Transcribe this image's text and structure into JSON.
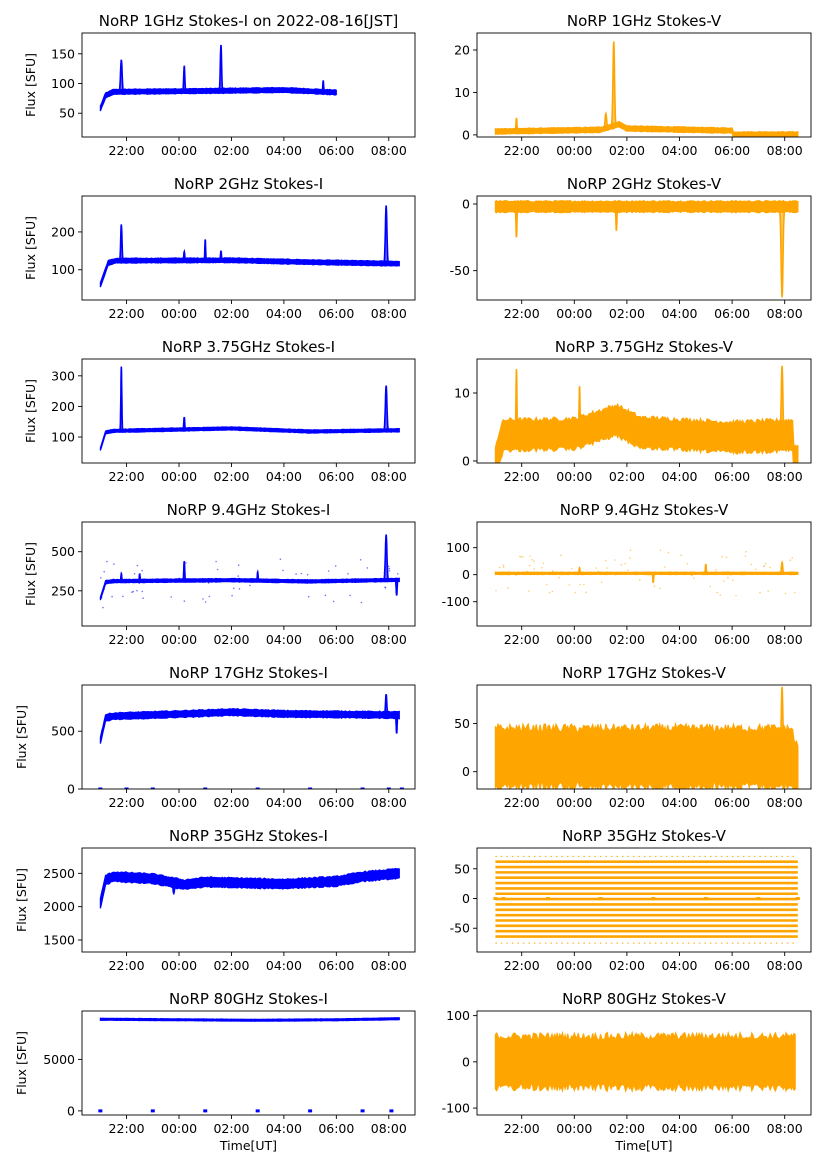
{
  "figure": {
    "x_tick_labels": [
      "22:00",
      "00:00",
      "02:00",
      "04:00",
      "06:00",
      "08:00"
    ],
    "xlabel": "Time[UT]",
    "ylabel": "Flux [SFU]",
    "colors": {
      "stokes_i": "#0000ff",
      "stokes_v": "#ffa500"
    }
  },
  "chart_data": [
    {
      "type": "scatter",
      "title": "NoRP 1GHz Stokes-I on 2022-08-16[JST]",
      "ylabel": "Flux [SFU]",
      "x_hours_utc_range": [
        20.3,
        33.0
      ],
      "data_end_hour": 30.0,
      "ylim": [
        10,
        185
      ],
      "yticks": [
        50,
        100,
        150
      ],
      "baseline": [
        [
          21.0,
          58
        ],
        [
          21.2,
          80
        ],
        [
          21.5,
          86
        ],
        [
          24,
          87
        ],
        [
          26,
          88
        ],
        [
          28,
          89
        ],
        [
          30,
          85
        ]
      ],
      "band": 4,
      "spikes": [
        [
          21.8,
          140,
          0.1
        ],
        [
          24.2,
          130,
          0.07
        ],
        [
          25.6,
          165,
          0.08
        ],
        [
          29.5,
          105,
          0.05
        ]
      ],
      "outliers": []
    },
    {
      "type": "scatter",
      "title": "NoRP 1GHz Stokes-V",
      "ylabel": "",
      "x_hours_utc_range": [
        20.3,
        33.0
      ],
      "data_end_hour": 32.5,
      "ylim": [
        -0.5,
        24
      ],
      "yticks": [
        0,
        10,
        20
      ],
      "baseline": [
        [
          21.0,
          0.8
        ],
        [
          25.0,
          1.2
        ],
        [
          25.7,
          2.5
        ],
        [
          26.0,
          1.5
        ],
        [
          30.0,
          1.0
        ],
        [
          30.05,
          0.1
        ],
        [
          32.5,
          0.1
        ]
      ],
      "band": 0.6,
      "spikes": [
        [
          21.8,
          4,
          0.06
        ],
        [
          25.5,
          22,
          0.1
        ],
        [
          25.2,
          5,
          0.1
        ]
      ],
      "outliers": []
    },
    {
      "type": "scatter",
      "title": "NoRP 2GHz Stokes-I",
      "ylabel": "Flux [SFU]",
      "x_hours_utc_range": [
        20.3,
        33.0
      ],
      "data_end_hour": 32.4,
      "ylim": [
        20,
        295
      ],
      "yticks": [
        100,
        200
      ],
      "baseline": [
        [
          21.0,
          60
        ],
        [
          21.3,
          118
        ],
        [
          21.6,
          124
        ],
        [
          26,
          125
        ],
        [
          29,
          120
        ],
        [
          32.4,
          116
        ]
      ],
      "band": 6,
      "spikes": [
        [
          21.8,
          220,
          0.08
        ],
        [
          24.2,
          148,
          0.06
        ],
        [
          25.6,
          150,
          0.06
        ],
        [
          31.9,
          270,
          0.1
        ],
        [
          25.0,
          180,
          0.05
        ]
      ],
      "outliers": []
    },
    {
      "type": "scatter",
      "title": "NoRP 2GHz Stokes-V",
      "ylabel": "",
      "x_hours_utc_range": [
        20.3,
        33.0
      ],
      "data_end_hour": 32.5,
      "ylim": [
        -72,
        6
      ],
      "yticks": [
        -50,
        0
      ],
      "baseline": [
        [
          21.0,
          -2
        ],
        [
          32.5,
          -2
        ]
      ],
      "band": 4,
      "spikes": [
        [
          21.8,
          -25,
          0.06
        ],
        [
          25.6,
          -20,
          0.06
        ],
        [
          31.9,
          -70,
          0.12
        ]
      ],
      "outliers": []
    },
    {
      "type": "scatter",
      "title": "NoRP 3.75GHz Stokes-I",
      "ylabel": "Flux [SFU]",
      "x_hours_utc_range": [
        20.3,
        33.0
      ],
      "data_end_hour": 32.4,
      "ylim": [
        15,
        355
      ],
      "yticks": [
        100,
        200,
        300
      ],
      "baseline": [
        [
          21.0,
          60
        ],
        [
          21.2,
          115
        ],
        [
          21.5,
          120
        ],
        [
          26,
          128
        ],
        [
          29,
          118
        ],
        [
          32.4,
          122
        ]
      ],
      "band": 5,
      "spikes": [
        [
          21.8,
          330,
          0.06
        ],
        [
          24.2,
          165,
          0.06
        ],
        [
          31.9,
          268,
          0.1
        ]
      ],
      "outliers": []
    },
    {
      "type": "scatter",
      "title": "NoRP 3.75GHz Stokes-V",
      "ylabel": "",
      "x_hours_utc_range": [
        20.3,
        33.0
      ],
      "data_end_hour": 32.5,
      "ylim": [
        -0.3,
        15
      ],
      "yticks": [
        0,
        10
      ],
      "baseline": [
        [
          21.0,
          0
        ],
        [
          21.3,
          3.8
        ],
        [
          24,
          4
        ],
        [
          25.6,
          6
        ],
        [
          26.5,
          4.2
        ],
        [
          30,
          3.5
        ],
        [
          32.3,
          3.8
        ],
        [
          32.35,
          0
        ],
        [
          32.5,
          0
        ]
      ],
      "band": 2.2,
      "spikes": [
        [
          21.8,
          13.5,
          0.06
        ],
        [
          24.2,
          11,
          0.06
        ],
        [
          31.9,
          14,
          0.1
        ]
      ],
      "outliers": []
    },
    {
      "type": "scatter",
      "title": "NoRP 9.4GHz Stokes-I",
      "ylabel": "Flux [SFU]",
      "x_hours_utc_range": [
        20.3,
        33.0
      ],
      "data_end_hour": 32.4,
      "ylim": [
        25,
        690
      ],
      "yticks": [
        250,
        500
      ],
      "baseline": [
        [
          21.0,
          200
        ],
        [
          21.2,
          305
        ],
        [
          21.5,
          312
        ],
        [
          26,
          318
        ],
        [
          29,
          310
        ],
        [
          32.4,
          320
        ]
      ],
      "band": 10,
      "spikes": [
        [
          21.8,
          360,
          0.05
        ],
        [
          22.5,
          360,
          0.05
        ],
        [
          24.2,
          440,
          0.06
        ],
        [
          27,
          370,
          0.05
        ],
        [
          31.9,
          610,
          0.1
        ],
        [
          32.3,
          220,
          0.06
        ]
      ],
      "outliers": 60
    },
    {
      "type": "scatter",
      "title": "NoRP 9.4GHz Stokes-V",
      "ylabel": "",
      "x_hours_utc_range": [
        20.3,
        33.0
      ],
      "data_end_hour": 32.5,
      "ylim": [
        -190,
        195
      ],
      "yticks": [
        -100,
        0,
        100
      ],
      "baseline": [
        [
          21.0,
          5
        ],
        [
          32.5,
          5
        ]
      ],
      "band": 4,
      "spikes": [
        [
          24.2,
          25,
          0.05
        ],
        [
          31.9,
          45,
          0.08
        ],
        [
          27.0,
          -30,
          0.05
        ],
        [
          29.0,
          40,
          0.05
        ]
      ],
      "outliers": 80
    },
    {
      "type": "scatter",
      "title": "NoRP 17GHz Stokes-I",
      "ylabel": "Flux [SFU]",
      "x_hours_utc_range": [
        20.3,
        33.0
      ],
      "data_end_hour": 32.4,
      "ylim": [
        0,
        900
      ],
      "yticks": [
        0,
        500
      ],
      "baseline": [
        [
          21.0,
          420
        ],
        [
          21.2,
          615
        ],
        [
          21.5,
          630
        ],
        [
          24,
          648
        ],
        [
          26,
          665
        ],
        [
          28,
          650
        ],
        [
          32.4,
          640
        ]
      ],
      "band": 28,
      "spikes": [
        [
          31.9,
          820,
          0.08
        ],
        [
          32.3,
          480,
          0.06
        ]
      ],
      "outliers": [],
      "zero_marks": [
        21.0,
        22.0,
        23.0,
        25.0,
        27.0,
        29.0,
        31.0,
        32.0,
        32.5
      ]
    },
    {
      "type": "scatter",
      "title": "NoRP 17GHz Stokes-V",
      "ylabel": "",
      "x_hours_utc_range": [
        20.3,
        33.0
      ],
      "data_end_hour": 32.5,
      "ylim": [
        -18,
        90
      ],
      "yticks": [
        0,
        50
      ],
      "baseline": [
        [
          21.0,
          15
        ],
        [
          32.3,
          15
        ],
        [
          32.35,
          0
        ],
        [
          32.5,
          0
        ]
      ],
      "band": 30,
      "spikes": [
        [
          31.9,
          88,
          0.1
        ]
      ],
      "outliers": []
    },
    {
      "type": "scatter",
      "title": "NoRP 35GHz Stokes-I",
      "ylabel": "Flux [SFU]",
      "x_hours_utc_range": [
        20.3,
        33.0
      ],
      "data_end_hour": 32.4,
      "ylim": [
        1320,
        2880
      ],
      "yticks": [
        1500,
        2000,
        2500
      ],
      "baseline": [
        [
          21.0,
          2050
        ],
        [
          21.2,
          2400
        ],
        [
          21.5,
          2450
        ],
        [
          23,
          2420
        ],
        [
          24.2,
          2330
        ],
        [
          25,
          2370
        ],
        [
          28,
          2340
        ],
        [
          30,
          2380
        ],
        [
          31,
          2450
        ],
        [
          32.4,
          2500
        ]
      ],
      "band": 70,
      "spikes": [
        [
          23.8,
          2200,
          0.1
        ]
      ],
      "outliers": []
    },
    {
      "type": "scatter",
      "title": "NoRP 35GHz Stokes-V",
      "ylabel": "",
      "x_hours_utc_range": [
        20.3,
        33.0
      ],
      "data_end_hour": 32.5,
      "ylim": [
        -90,
        85
      ],
      "yticks": [
        -50,
        0,
        50
      ],
      "levels": [
        -75,
        -64,
        -55,
        -46,
        -37,
        -28,
        -19,
        -10,
        -1,
        8,
        17,
        26,
        35,
        44,
        53,
        62,
        71
      ],
      "zero_marks": [
        21.0,
        21.3,
        23.0,
        25.0,
        27.0,
        29.0,
        31.0,
        32.5
      ]
    },
    {
      "type": "scatter",
      "title": "NoRP 80GHz Stokes-I",
      "ylabel": "Flux [SFU]",
      "x_hours_utc_range": [
        20.3,
        33.0
      ],
      "data_end_hour": 32.4,
      "ylim": [
        -400,
        9700
      ],
      "yticks": [
        0,
        5000
      ],
      "baseline": [
        [
          21.0,
          8900
        ],
        [
          24,
          8850
        ],
        [
          27,
          8800
        ],
        [
          30,
          8850
        ],
        [
          32.4,
          8950
        ]
      ],
      "band": 90,
      "spikes": [],
      "outliers": [],
      "zero_marks": [
        21.0,
        23.0,
        25.0,
        27.0,
        29.0,
        31.0,
        32.1
      ]
    },
    {
      "type": "scatter",
      "title": "NoRP 80GHz Stokes-V",
      "ylabel": "",
      "x_hours_utc_range": [
        20.3,
        33.0
      ],
      "data_end_hour": 32.4,
      "ylim": [
        -115,
        110
      ],
      "yticks": [
        -100,
        0,
        100
      ],
      "baseline": [
        [
          21.0,
          0
        ],
        [
          32.4,
          0
        ]
      ],
      "band": 55,
      "spikes": [],
      "outliers": []
    }
  ]
}
